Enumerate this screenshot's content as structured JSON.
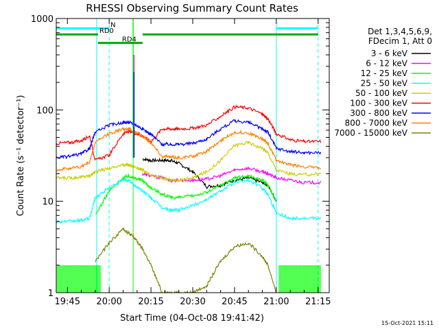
{
  "chart_data": {
    "type": "line",
    "title": "RHESSI Observing Summary Count Rates",
    "xlabel": "Start Time (04-Oct-08 19:41:42)",
    "ylabel": "Count Rate (s⁻¹ detector⁻¹)",
    "yscale": "log",
    "ylim": [
      1,
      1000
    ],
    "xlim_minutes": [
      -19,
      79
    ],
    "x_ticks": [
      {
        "label": "19:45",
        "value": -15
      },
      {
        "label": "20:00",
        "value": 0
      },
      {
        "label": "20:15",
        "value": 15
      },
      {
        "label": "20:30",
        "value": 30
      },
      {
        "label": "20:45",
        "value": 45
      },
      {
        "label": "21:00",
        "value": 60
      },
      {
        "label": "21:15",
        "value": 75
      }
    ],
    "y_ticks": [
      {
        "label": "1",
        "value": 1
      },
      {
        "label": "10",
        "value": 10
      },
      {
        "label": "100",
        "value": 100
      },
      {
        "label": "1000",
        "value": 1000
      }
    ],
    "legend": {
      "placement": "right",
      "header": [
        "Det 1,3,4,5,6,9,",
        "FDecim 1, Att 0"
      ]
    },
    "grid": false,
    "x": [
      -19,
      -14,
      -10,
      -7,
      -5,
      0,
      5,
      7,
      9,
      12,
      15,
      19,
      22,
      25,
      30,
      35,
      40,
      45,
      50,
      55,
      57,
      60,
      65,
      70,
      76
    ],
    "series": [
      {
        "name": "3 - 6 keV",
        "color": "#000000",
        "values": [
          null,
          null,
          null,
          null,
          null,
          null,
          null,
          null,
          null,
          29,
          28,
          28,
          28,
          26,
          21,
          14.5,
          15,
          17,
          18,
          16,
          15,
          10,
          null,
          null,
          null
        ]
      },
      {
        "name": "6 - 12 keV",
        "color": "#ff00ff",
        "values": [
          null,
          null,
          null,
          null,
          null,
          null,
          null,
          null,
          null,
          20,
          19,
          18,
          17,
          17,
          17,
          17.5,
          19,
          22,
          23,
          21,
          20,
          18,
          17,
          16,
          16
        ]
      },
      {
        "name": "12 - 25 keV",
        "color": "#00ff00",
        "values": [
          null,
          null,
          null,
          null,
          7,
          13,
          18,
          19,
          18,
          17,
          14,
          12,
          11,
          11,
          11.5,
          12.5,
          15,
          18,
          19,
          17,
          15,
          10,
          null,
          null,
          null
        ]
      },
      {
        "name": "25 - 50 keV",
        "color": "#00ffff",
        "values": [
          6,
          6,
          6.2,
          6.5,
          11,
          14,
          17,
          17,
          15,
          13,
          11,
          8.5,
          8,
          8,
          9,
          10.5,
          13,
          16,
          17,
          14,
          12,
          7.5,
          6.5,
          6.5,
          6.5
        ]
      },
      {
        "name": "50 - 100 keV",
        "color": "#cccc00",
        "values": [
          18,
          18,
          18.5,
          19,
          21,
          23,
          25,
          25,
          24,
          22,
          19,
          18,
          17,
          17,
          18,
          21,
          28,
          41,
          44,
          38,
          34,
          22,
          20,
          19.5,
          20
        ]
      },
      {
        "name": "100 - 300 keV",
        "color": "#ff0000",
        "values": [
          43,
          44,
          46,
          52,
          28,
          32,
          55,
          58,
          56,
          52,
          45,
          62,
          62,
          62,
          63,
          68,
          85,
          108,
          105,
          90,
          80,
          55,
          47,
          45,
          45
        ]
      },
      {
        "name": "300 - 800 keV",
        "color": "#0000ff",
        "values": [
          30,
          31,
          33,
          38,
          57,
          68,
          73,
          73,
          70,
          62,
          54,
          42,
          42,
          42,
          43,
          48,
          62,
          76,
          73,
          62,
          57,
          38,
          35,
          34,
          34
        ]
      },
      {
        "name": "800 - 7000 keV",
        "color": "#ff8000",
        "values": [
          22,
          23,
          24,
          27,
          44,
          55,
          62,
          62,
          58,
          52,
          44,
          31,
          30.5,
          30,
          31,
          35,
          46,
          57,
          56,
          48,
          43,
          28,
          25,
          24,
          23
        ]
      },
      {
        "name": "7000 - 15000 keV",
        "color": "#808000",
        "values": [
          null,
          null,
          null,
          null,
          2.2,
          3.5,
          5,
          4.5,
          4,
          3,
          2,
          1,
          1,
          1,
          1,
          1.2,
          2.2,
          3.2,
          3.5,
          2.5,
          2,
          1,
          null,
          null,
          null
        ]
      }
    ],
    "series_spikes": [
      {
        "series": "6 - 12 keV",
        "x": 8.9,
        "value": 400
      },
      {
        "series": "12 - 25 keV",
        "x": 8.6,
        "value": 1000
      },
      {
        "series": "300 - 800 keV",
        "x": 8.9,
        "value": 260
      }
    ],
    "green_floor_segments": [
      {
        "from": -19,
        "to": -3,
        "value": 2
      },
      {
        "from": 61,
        "to": 76,
        "value": 2
      }
    ],
    "state_bars": [
      {
        "label": "N",
        "color": "#00ffff",
        "y": 780,
        "segments": [
          [
            -19,
            0
          ],
          [
            60,
            75
          ]
        ]
      },
      {
        "label": "RD0",
        "color": "#00aa00",
        "y": 670,
        "segments": [
          [
            -19,
            -4
          ],
          [
            12,
            75
          ]
        ]
      },
      {
        "label": "RD4",
        "color": "#00aa00",
        "y": 540,
        "segments": [
          [
            -4,
            12
          ]
        ]
      }
    ],
    "event_lines": [
      {
        "x": -4.5,
        "color": "#00ffff",
        "style": "solid"
      },
      {
        "x": 0,
        "color": "#00ffff",
        "style": "dashed"
      },
      {
        "x": 8.6,
        "color": "#00ff00",
        "style": "solid"
      },
      {
        "x": 60,
        "color": "#00ffff",
        "style": "solid"
      },
      {
        "x": 75,
        "color": "#00ffff",
        "style": "dashed"
      }
    ],
    "timestamp": "15-Oct-2021 15:11"
  }
}
